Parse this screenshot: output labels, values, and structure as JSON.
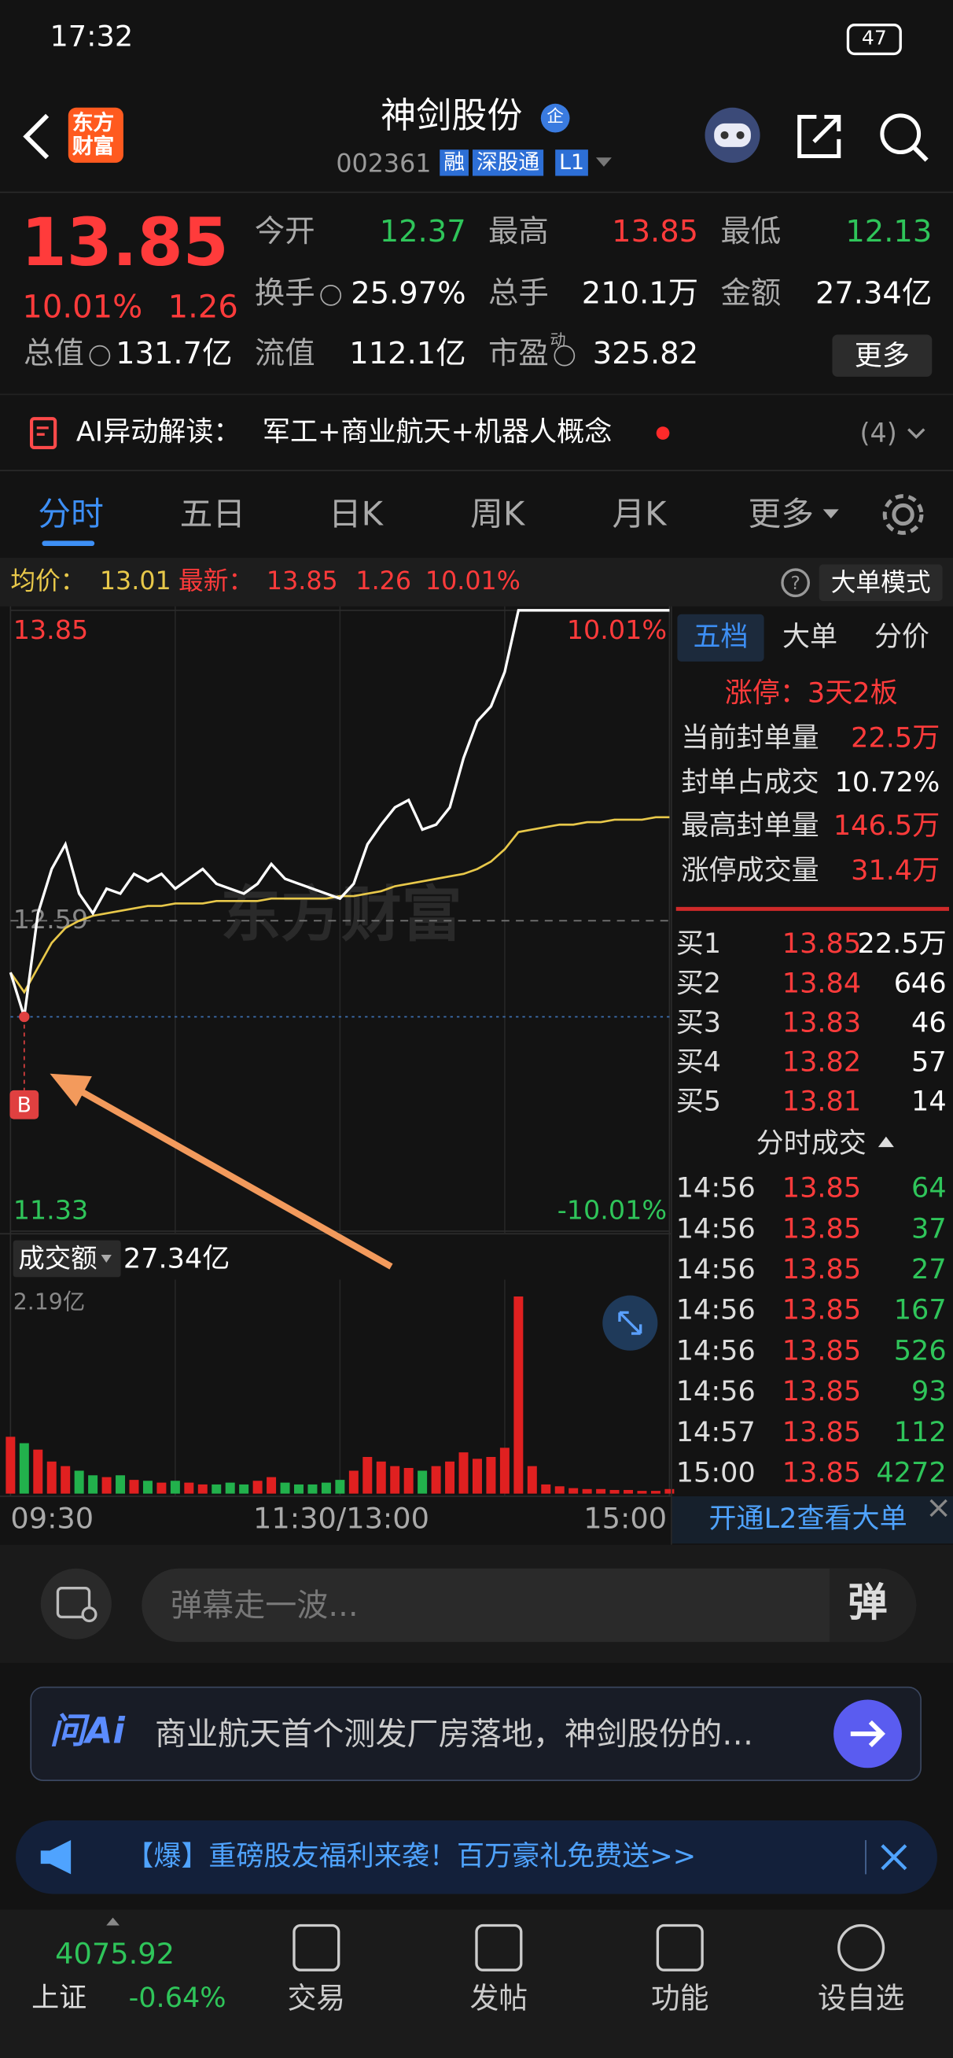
{
  "status_bar": {
    "time": "17:32",
    "battery": "47"
  },
  "header": {
    "logo": [
      "东方",
      "财富"
    ],
    "title": "神剑股份",
    "badge": "企",
    "code": "002361",
    "tags": [
      "融",
      "深股通",
      "L1"
    ]
  },
  "quote": {
    "price": "13.85",
    "change_pct": "10.01%",
    "change": "1.26",
    "more_button": "更多",
    "fields": [
      {
        "label": "今开",
        "value": "12.37",
        "color": "#2fc55a"
      },
      {
        "label": "最高",
        "value": "13.85",
        "color": "#ff3b3b"
      },
      {
        "label": "最低",
        "value": "12.13",
        "color": "#2fc55a"
      },
      {
        "label": "换手",
        "value": "25.97%",
        "color": "#ffffff"
      },
      {
        "label": "总手",
        "value": "210.1万",
        "color": "#ffffff"
      },
      {
        "label": "金额",
        "value": "27.34亿",
        "color": "#ffffff"
      },
      {
        "label": "总值",
        "value": "131.7亿",
        "color": "#ffffff"
      },
      {
        "label": "流值",
        "value": "112.1亿",
        "color": "#ffffff"
      },
      {
        "label": "市盈",
        "sup": "动",
        "value": "325.82",
        "color": "#ffffff"
      }
    ]
  },
  "ai_alert": {
    "label": "AI异动解读：",
    "text": "军工+商业航天+机器人概念",
    "count": "(4)"
  },
  "tabs": [
    "分时",
    "五日",
    "日K",
    "周K",
    "月K",
    "更多"
  ],
  "chart": {
    "avg_label": "均价：",
    "avg_value": "13.01",
    "last_label": "最新：",
    "last": "13.85",
    "change": "1.26",
    "change_pct": "10.01%",
    "mode_button": "大单模式",
    "watermark": "东方财富",
    "marker": "B",
    "ylim": [
      11.33,
      13.85
    ],
    "yticks": [
      11.33,
      12.59,
      13.85
    ],
    "pct_top": "10.01%",
    "pct_bottom": "-10.01%",
    "price_color": "#ffffff",
    "avg_color": "#e8c84a",
    "price": [
      12.38,
      12.2,
      12.62,
      12.8,
      12.9,
      12.7,
      12.62,
      12.72,
      12.7,
      12.78,
      12.75,
      12.78,
      12.72,
      12.76,
      12.8,
      12.74,
      12.72,
      12.7,
      12.74,
      12.82,
      12.76,
      12.74,
      12.72,
      12.7,
      12.68,
      12.74,
      12.9,
      12.98,
      13.05,
      13.08,
      12.96,
      12.98,
      13.05,
      13.25,
      13.4,
      13.46,
      13.6,
      13.85,
      13.85,
      13.85,
      13.85,
      13.85,
      13.85,
      13.85,
      13.85,
      13.85,
      13.85,
      13.85,
      13.85
    ],
    "avg": [
      12.38,
      12.3,
      12.4,
      12.5,
      12.56,
      12.59,
      12.61,
      12.62,
      12.63,
      12.64,
      12.65,
      12.65,
      12.66,
      12.66,
      12.66,
      12.67,
      12.67,
      12.67,
      12.67,
      12.68,
      12.68,
      12.68,
      12.68,
      12.68,
      12.69,
      12.69,
      12.7,
      12.71,
      12.73,
      12.74,
      12.75,
      12.76,
      12.77,
      12.78,
      12.8,
      12.83,
      12.88,
      12.95,
      12.96,
      12.97,
      12.98,
      12.98,
      12.99,
      12.99,
      13.0,
      13.0,
      13.0,
      13.01,
      13.01
    ],
    "x_labels": [
      "09:30",
      "11:30/13:00",
      "15:00"
    ],
    "volume_title": "成交额",
    "volume_total": "27.34亿",
    "volume_max_label": "2.19亿",
    "volume_ylim": [
      0,
      2.19
    ],
    "up_color": "#e02020",
    "down_color": "#22b14c",
    "volume": [
      0.62,
      0.55,
      0.48,
      0.35,
      0.3,
      0.25,
      0.2,
      0.18,
      0.2,
      0.15,
      0.14,
      0.12,
      0.14,
      0.12,
      0.1,
      0.1,
      0.12,
      0.1,
      0.14,
      0.18,
      0.12,
      0.1,
      0.1,
      0.12,
      0.15,
      0.25,
      0.4,
      0.35,
      0.3,
      0.28,
      0.25,
      0.3,
      0.35,
      0.45,
      0.38,
      0.4,
      0.5,
      2.15,
      0.3,
      0.1,
      0.08,
      0.06,
      0.05,
      0.05,
      0.04,
      0.04,
      0.03,
      0.03,
      0.05
    ]
  },
  "order_book": {
    "tabs": [
      "五档",
      "大单",
      "分价"
    ],
    "limit_status": "涨停：3天2板",
    "stats": [
      {
        "label": "当前封单量",
        "value": "22.5万",
        "color": "#ff3b3b"
      },
      {
        "label": "封单占成交",
        "value": "10.72%",
        "color": "#ffffff"
      },
      {
        "label": "最高封单量",
        "value": "146.5万",
        "color": "#ff3b3b"
      },
      {
        "label": "涨停成交量",
        "value": "31.4万",
        "color": "#ff3b3b"
      }
    ],
    "bids": [
      {
        "label": "买1",
        "price": "13.85",
        "volume": "22.5万"
      },
      {
        "label": "买2",
        "price": "13.84",
        "volume": "646"
      },
      {
        "label": "买3",
        "price": "13.83",
        "volume": "46"
      },
      {
        "label": "买4",
        "price": "13.82",
        "volume": "57"
      },
      {
        "label": "买5",
        "price": "13.81",
        "volume": "14"
      }
    ],
    "ticks_title": "分时成交",
    "ticks": [
      {
        "time": "14:56",
        "price": "13.85",
        "volume": "64"
      },
      {
        "time": "14:56",
        "price": "13.85",
        "volume": "37"
      },
      {
        "time": "14:56",
        "price": "13.85",
        "volume": "27"
      },
      {
        "time": "14:56",
        "price": "13.85",
        "volume": "167"
      },
      {
        "time": "14:56",
        "price": "13.85",
        "volume": "526"
      },
      {
        "time": "14:56",
        "price": "13.85",
        "volume": "93"
      },
      {
        "time": "14:57",
        "price": "13.85",
        "volume": "112"
      },
      {
        "time": "15:00",
        "price": "13.85",
        "volume": "4272"
      }
    ],
    "l2_link": "开通L2查看大单"
  },
  "comment_input": {
    "placeholder": "弹幕走一波...",
    "button": "弹"
  },
  "ask_ai": {
    "logo": "问Ai",
    "text": "商业航天首个测发厂房落地，神剑股份的…"
  },
  "banner": {
    "text": "【爆】重磅股友福利来袭！百万豪礼免费送>>"
  },
  "nav": {
    "index_value": "4075.92",
    "index_name": "上证",
    "index_change": "-0.64%",
    "items": [
      "交易",
      "发帖",
      "功能",
      "设自选"
    ]
  }
}
